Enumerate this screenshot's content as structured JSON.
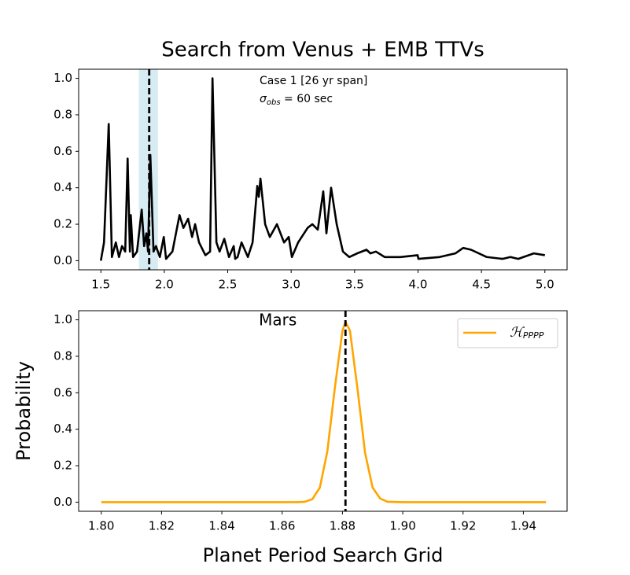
{
  "chart_data": [
    {
      "type": "line",
      "title": "Search from Venus + EMB TTVs",
      "x": [
        1.5,
        1.525,
        1.562,
        1.587,
        1.618,
        1.643,
        1.667,
        1.692,
        1.711,
        1.729,
        1.736,
        1.754,
        1.785,
        1.822,
        1.841,
        1.859,
        1.872,
        1.89,
        1.915,
        1.934,
        1.965,
        1.996,
        2.014,
        2.064,
        2.12,
        2.151,
        2.188,
        2.219,
        2.243,
        2.274,
        2.324,
        2.361,
        2.38,
        2.411,
        2.436,
        2.473,
        2.51,
        2.547,
        2.559,
        2.578,
        2.609,
        2.659,
        2.696,
        2.733,
        2.745,
        2.758,
        2.795,
        2.832,
        2.888,
        2.944,
        2.981,
        3.006,
        3.055,
        3.13,
        3.167,
        3.21,
        3.253,
        3.278,
        3.315,
        3.359,
        3.408,
        3.458,
        3.52,
        3.594,
        3.625,
        3.668,
        3.737,
        3.861,
        3.997,
        4.003,
        4.17,
        4.294,
        4.356,
        4.418,
        4.542,
        4.666,
        4.728,
        4.79,
        4.913,
        5.0
      ],
      "series": [
        {
          "color": "#000000",
          "values": [
            0.0,
            0.1,
            0.75,
            0.02,
            0.1,
            0.02,
            0.08,
            0.05,
            0.56,
            0.05,
            0.25,
            0.02,
            0.05,
            0.28,
            0.08,
            0.15,
            0.05,
            0.58,
            0.05,
            0.08,
            0.02,
            0.13,
            0.01,
            0.05,
            0.25,
            0.18,
            0.23,
            0.13,
            0.2,
            0.1,
            0.03,
            0.05,
            1.0,
            0.1,
            0.05,
            0.12,
            0.02,
            0.08,
            0.01,
            0.02,
            0.1,
            0.02,
            0.1,
            0.41,
            0.35,
            0.45,
            0.2,
            0.13,
            0.2,
            0.1,
            0.13,
            0.02,
            0.1,
            0.18,
            0.2,
            0.17,
            0.38,
            0.15,
            0.4,
            0.2,
            0.05,
            0.02,
            0.04,
            0.06,
            0.04,
            0.05,
            0.02,
            0.02,
            0.03,
            0.01,
            0.02,
            0.04,
            0.07,
            0.06,
            0.02,
            0.01,
            0.02,
            0.01,
            0.04,
            0.03
          ]
        }
      ],
      "span": [
        1.8,
        1.95
      ],
      "span_color": "#add8e6",
      "vline": 1.881,
      "vline_color": "#000000",
      "annotations": [
        {
          "text": "Case 1 [26 yr span]"
        },
        {
          "symbol": "σ",
          "subscript": "obs",
          "text": " = 60 sec"
        }
      ],
      "xlim": [
        1.325,
        5.175
      ],
      "xticks": [
        1.5,
        {
          "value": 2.0,
          "label": "2.0"
        },
        2.5,
        {
          "value": 3.0,
          "label": "3.0"
        },
        3.5,
        {
          "value": 4.0,
          "label": "4.0"
        },
        4.5,
        {
          "value": 5.0,
          "label": "5.0"
        }
      ],
      "ylim": [
        -0.05,
        1.05
      ],
      "yticks": [
        {
          "value": 0.0,
          "label": "0.0"
        },
        0.2,
        0.4,
        0.6,
        0.8,
        {
          "value": 1.0,
          "label": "1.0"
        }
      ]
    },
    {
      "type": "line",
      "x_label": "Planet Period Search Grid",
      "y_label": "Probability",
      "x": [
        1.8,
        1.86,
        1.865,
        1.8675,
        1.87,
        1.8725,
        1.875,
        1.8775,
        1.88,
        1.881,
        1.8825,
        1.885,
        1.8875,
        1.89,
        1.8925,
        1.895,
        1.9,
        1.9475
      ],
      "series": [
        {
          "name": "ℋ",
          "name_subscript": "PPPP",
          "color": "#ffa500",
          "values": [
            0,
            0,
            0,
            0.002,
            0.016,
            0.08,
            0.28,
            0.63,
            0.94,
            0.99,
            0.94,
            0.62,
            0.27,
            0.08,
            0.02,
            0.002,
            0,
            0
          ]
        }
      ],
      "vline": 1.881,
      "vline_color": "#000000",
      "vline_label": "Mars",
      "legend": "upper right",
      "xlim": [
        1.7925,
        1.9545
      ],
      "xticks": [
        {
          "value": 1.8,
          "label": "1.80"
        },
        1.82,
        1.84,
        1.86,
        1.88,
        {
          "value": 1.9,
          "label": "1.90"
        },
        1.92,
        1.94
      ],
      "ylim": [
        -0.05,
        1.05
      ],
      "yticks": [
        {
          "value": 0.0,
          "label": "0.0"
        },
        0.2,
        0.4,
        0.6,
        0.8,
        {
          "value": 1.0,
          "label": "1.0"
        }
      ]
    }
  ]
}
